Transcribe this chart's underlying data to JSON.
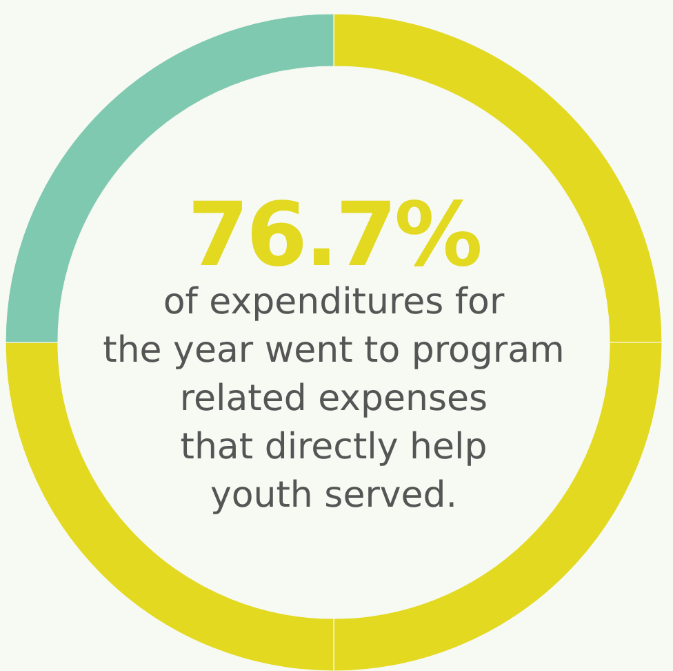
{
  "chart_data": {
    "type": "donut",
    "title": "76.7%",
    "subtitle": "of expenditures for\nthe year went to program\nrelated expenses\nthat directly help\nyouth served.",
    "categories": [
      null,
      null,
      null,
      null
    ],
    "values": [
      25,
      25,
      25,
      25
    ],
    "colors": [
      "#e2d920",
      "#e2d920",
      "#e2d920",
      "#7fc9b0"
    ]
  }
}
